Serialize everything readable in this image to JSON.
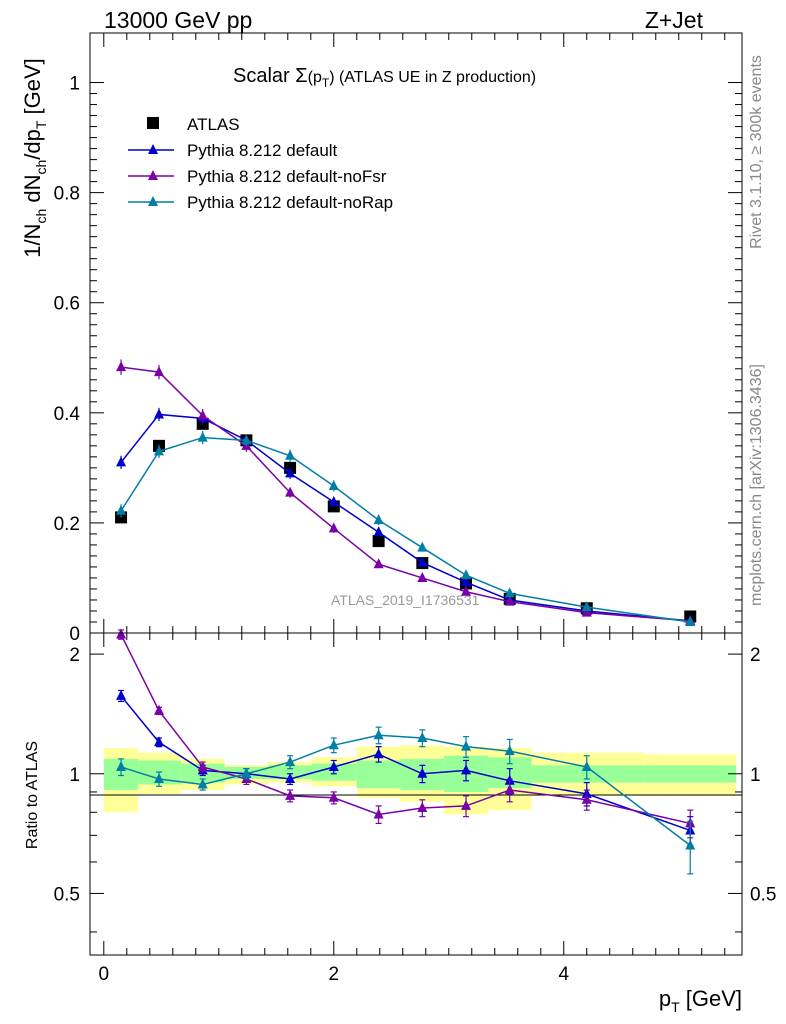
{
  "header": {
    "left": "13000 GeV pp",
    "right": "Z+Jet"
  },
  "side_labels": {
    "top": "Rivet 3.1.10, ≥ 300k events",
    "bottom": "mcplots.cern.ch [arXiv:1306.3436]"
  },
  "watermark": "ATLAS_2019_I1736531",
  "colors": {
    "data": "#000000",
    "default": "#0000cc",
    "noFsr": "#7a00a8",
    "noRap": "#007fa6",
    "band_inner": "#99ff99",
    "band_outer": "#ffff99"
  },
  "chart_data": [
    {
      "type": "line",
      "panel": "main",
      "title": "Scalar Σ(p_T) (ATLAS UE in Z production)",
      "title_parts": {
        "pre": "Scalar ",
        "sigma": "Σ",
        "paren_open": "(p",
        "sub": "T",
        "paren_close": ")",
        "post": " (ATLAS UE in Z production)"
      },
      "ylabel": "1/N_ch dN_ch/dp_T [GeV]",
      "ylabel_parts": {
        "a": "1/N",
        "a_sub": "ch",
        "b": " dN",
        "b_sub": "ch",
        "c": "/dp",
        "c_sub": "T",
        "d": " [GeV]"
      },
      "xlim": [
        -0.12,
        5.55
      ],
      "ylim": [
        0,
        1.09
      ],
      "yticks": [
        0,
        0.2,
        0.4,
        0.6,
        0.8,
        1
      ],
      "ytick_labels": [
        "0",
        "0.2",
        "0.4",
        "0.6",
        "0.8",
        "1"
      ],
      "x": [
        0.15,
        0.48,
        0.86,
        1.24,
        1.62,
        2.0,
        2.39,
        2.77,
        3.15,
        3.53,
        4.2,
        5.1
      ],
      "series": [
        {
          "name": "ATLAS",
          "key": "data",
          "marker": "square",
          "values": [
            0.21,
            0.34,
            0.38,
            0.35,
            0.3,
            0.23,
            0.167,
            0.127,
            0.09,
            0.062,
            0.045,
            0.03
          ],
          "errors": [
            0.008,
            0.008,
            0.008,
            0.008,
            0.007,
            0.006,
            0.005,
            0.004,
            0.003,
            0.002,
            0.002,
            0.002
          ]
        },
        {
          "name": "Pythia 8.212 default",
          "key": "default",
          "marker": "triangle",
          "values": [
            0.31,
            0.397,
            0.39,
            0.35,
            0.29,
            0.238,
            0.183,
            0.128,
            0.092,
            0.06,
            0.04,
            0.022
          ],
          "errors": [
            0.012,
            0.012,
            0.012,
            0.011,
            0.01,
            0.009,
            0.008,
            0.006,
            0.005,
            0.004,
            0.003,
            0.002
          ]
        },
        {
          "name": "Pythia 8.212 default-noFsr",
          "key": "noFsr",
          "marker": "triangle",
          "values": [
            0.483,
            0.474,
            0.395,
            0.34,
            0.255,
            0.19,
            0.125,
            0.1,
            0.075,
            0.057,
            0.037,
            0.022
          ],
          "errors": [
            0.014,
            0.013,
            0.012,
            0.011,
            0.009,
            0.008,
            0.006,
            0.005,
            0.004,
            0.004,
            0.003,
            0.002
          ]
        },
        {
          "name": "Pythia 8.212 default-noRap",
          "key": "noRap",
          "marker": "triangle",
          "values": [
            0.222,
            0.33,
            0.355,
            0.35,
            0.322,
            0.267,
            0.205,
            0.155,
            0.105,
            0.072,
            0.047,
            0.02
          ],
          "errors": [
            0.012,
            0.012,
            0.012,
            0.011,
            0.011,
            0.01,
            0.009,
            0.007,
            0.006,
            0.005,
            0.004,
            0.003
          ]
        }
      ]
    },
    {
      "type": "line",
      "panel": "ratio",
      "ylabel": "Ratio to ATLAS",
      "xlabel": "p_T [GeV]",
      "xlabel_parts": {
        "a": "p",
        "a_sub": "T",
        "b": " [GeV]"
      },
      "xlim": [
        -0.12,
        5.55
      ],
      "ylim": [
        0.35,
        2.26
      ],
      "xticks": [
        0,
        2,
        4
      ],
      "xtick_labels": [
        "0",
        "2",
        "4"
      ],
      "yticks": [
        0.5,
        1,
        2
      ],
      "ytick_labels": [
        "0.5",
        "1",
        "2"
      ],
      "x": [
        0.15,
        0.48,
        0.86,
        1.24,
        1.62,
        2.0,
        2.39,
        2.77,
        3.15,
        3.53,
        4.2,
        5.1
      ],
      "band_edges": [
        0,
        0.3,
        0.67,
        1.05,
        1.43,
        1.81,
        2.2,
        2.58,
        2.96,
        3.34,
        3.72,
        4.7,
        5.5
      ],
      "band_inner": [
        [
          0.91,
          1.09
        ],
        [
          0.94,
          1.08
        ],
        [
          0.95,
          1.06
        ],
        [
          0.97,
          1.04
        ],
        [
          0.97,
          1.05
        ],
        [
          0.96,
          1.06
        ],
        [
          0.92,
          1.08
        ],
        [
          0.91,
          1.09
        ],
        [
          0.9,
          1.11
        ],
        [
          0.92,
          1.1
        ],
        [
          0.95,
          1.05
        ],
        [
          0.95,
          1.05
        ]
      ],
      "band_outer": [
        [
          0.8,
          1.16
        ],
        [
          0.89,
          1.13
        ],
        [
          0.91,
          1.09
        ],
        [
          0.94,
          1.05
        ],
        [
          0.95,
          1.07
        ],
        [
          0.93,
          1.1
        ],
        [
          0.87,
          1.17
        ],
        [
          0.85,
          1.18
        ],
        [
          0.79,
          1.17
        ],
        [
          0.81,
          1.16
        ],
        [
          0.88,
          1.13
        ],
        [
          0.88,
          1.12
        ]
      ],
      "series": [
        {
          "name": "Pythia 8.212 default",
          "key": "default",
          "values": [
            1.57,
            1.2,
            1.02,
            1.0,
            0.97,
            1.04,
            1.12,
            1.0,
            1.02,
            0.96,
            0.89,
            0.72
          ],
          "errors": [
            0.05,
            0.03,
            0.03,
            0.03,
            0.03,
            0.04,
            0.05,
            0.05,
            0.06,
            0.07,
            0.06,
            0.06
          ]
        },
        {
          "name": "Pythia 8.212 default-noFsr",
          "key": "noFsr",
          "values": [
            2.24,
            1.44,
            1.04,
            0.97,
            0.88,
            0.87,
            0.79,
            0.82,
            0.83,
            0.91,
            0.86,
            0.75
          ],
          "errors": [
            0.06,
            0.03,
            0.03,
            0.03,
            0.03,
            0.03,
            0.04,
            0.04,
            0.05,
            0.06,
            0.05,
            0.06
          ]
        },
        {
          "name": "Pythia 8.212 default-noRap",
          "key": "noRap",
          "values": [
            1.04,
            0.97,
            0.94,
            1.0,
            1.07,
            1.18,
            1.25,
            1.23,
            1.17,
            1.14,
            1.04,
            0.66
          ],
          "errors": [
            0.05,
            0.04,
            0.03,
            0.03,
            0.04,
            0.05,
            0.06,
            0.06,
            0.07,
            0.08,
            0.07,
            0.1
          ]
        }
      ]
    }
  ]
}
